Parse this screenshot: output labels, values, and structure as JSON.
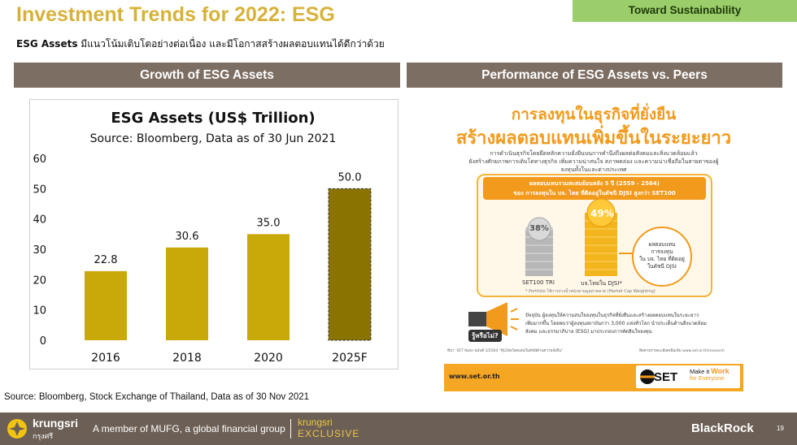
{
  "header": {
    "title": "Investment Trends for 2022: ESG",
    "tag": "Toward Sustainability",
    "subtitle_bold": "ESG Assets",
    "subtitle_rest": " มีแนวโน้มเติบโตอย่างต่อเนื่อง และมีโอกาสสร้างผลตอบแทนได้ดีกว่าด้วย"
  },
  "left_panel": {
    "heading": "Growth of ESG Assets"
  },
  "right_panel": {
    "heading": "Performance of ESG Assets vs. Peers"
  },
  "chart_data": {
    "type": "bar",
    "title": "ESG Assets (US$ Trillion)",
    "subtitle": "Source: Bloomberg, Data as of 30 Jun 2021",
    "categories": [
      "2016",
      "2018",
      "2020",
      "2025F"
    ],
    "values": [
      22.8,
      30.6,
      35.0,
      50.0
    ],
    "value_labels": [
      "22.8",
      "30.6",
      "35.0",
      "50.0"
    ],
    "ylim": [
      0,
      60
    ],
    "yticks": [
      "0",
      "10",
      "20",
      "30",
      "40",
      "50",
      "60"
    ],
    "colors": {
      "actual": "#c9a80a",
      "forecast": "#8a7300"
    },
    "grid": false
  },
  "source": "Source: Bloomberg, Stock Exchange of Thailand, Data as of 30 Nov 2021",
  "poster": {
    "headline1": "การลงทุนในธุรกิจที่ยั่งยืน",
    "headline2": "สร้างผลตอบแทนเพิ่มขึ้นในระยะยาว",
    "intro1": "การดำเนินธุรกิจโดยยึดหลักความยั่งยืนบนการคำนึงถึงผลต่อสังคมและสิ่งแวดล้อมแล้ว",
    "intro2": "ยังสร้างศักยภาพการเติบโตทางธุรกิจ เพิ่มความน่าสนใจ สภาพคล่อง และความน่าเชื่อถือในสายตาของผู้ลงทุนทั้งในและต่างประเทศ",
    "band1": "ผลตอบแทนรวมสะสมย้อนหลัง 5 ปี (2559 - 2564)",
    "band2": "ของ การลงทุนใน บจ. ไทย ที่ติดอยู่ในดัชนี DJSI สูงกว่า SET100",
    "pct_set": "38%",
    "pct_djsi": "49%",
    "label_set": "SET100 TRI",
    "label_djsi": "บจ.ไทยใน DJSI*",
    "callout1": "ผลตอบแทน",
    "callout2": "การลงทุน",
    "callout3": "ใน บจ. ไทย ที่ติดอยู่",
    "callout4": "ในดัชนี DJSI",
    "footnote": "* Portfolio ใช้การถ่วงน้ำหนักตามมูลค่าตลาด (Market Cap Weighting)",
    "badge": "รู้หรือไม่?",
    "body1": "ปัจจุบัน ผู้ลงทุนให้ความสนใจลงทุนในธุรกิจที่ยั่งยืนและสร้างผลตอบแทนในระยะยาว",
    "body2": "เพิ่มมากขึ้น โดยพบว่าผู้ลงทุนสถาบันกว่า 3,000 แห่งทั่วโลก นำประเด็นด้านสิ่งแวดล้อม",
    "body3": "สังคม และธรรมาภิบาล (ESG) มาประกอบการตัดสินใจลงทุน",
    "ref_left": "ที่มา: SET Note ฉบับที่ 3/2564 \"หุ้นไทยโดดเด่นในดัชนีด้านความยั่งยืน\"",
    "ref_right": "ติดตามรายละเอียดเพิ่มเติม www.set.or.th/research",
    "url": "www.set.or.th",
    "set_logo": "SET",
    "set_tag1": "Make it",
    "set_tag_work": "Work",
    "set_tag2": "for Everyone"
  },
  "footer": {
    "brand": "krungsri",
    "brand_th": "กรุงศรี",
    "member": "A member of MUFG, a global financial group",
    "excl1": "krungsri",
    "excl2": "EXCLUSIVE",
    "partner": "BlackRock",
    "page": "19"
  }
}
